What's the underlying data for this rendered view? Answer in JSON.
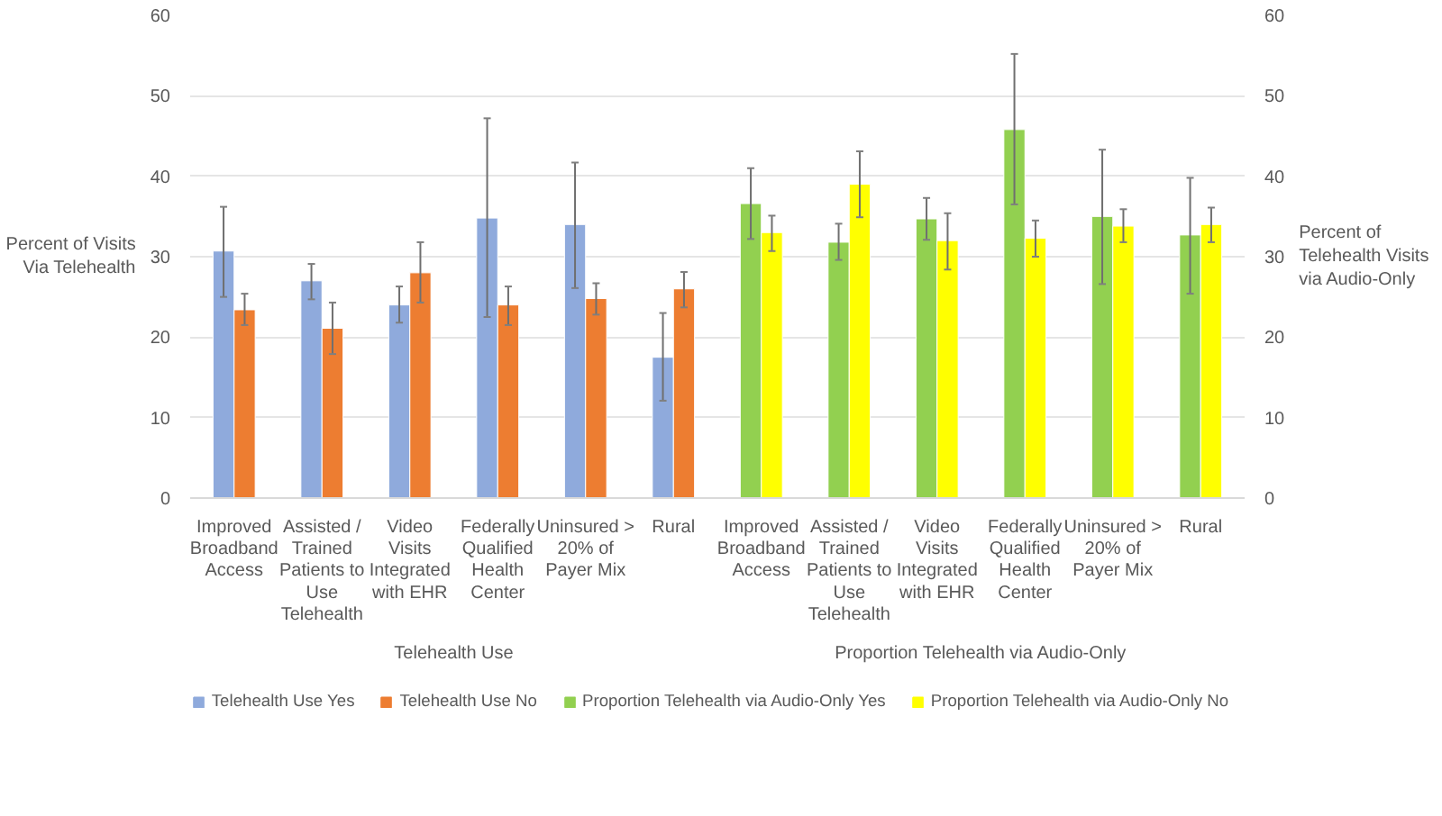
{
  "chart_data": {
    "type": "bar",
    "categories": [
      "Improved Broadband Access",
      "Assisted / Trained Patients to Use Telehealth",
      "Video Visits Integrated with EHR",
      "Federally Qualified Health Center",
      "Uninsured > 20% of Payer Mix",
      "Rural",
      "Improved Broadband Access",
      "Assisted / Trained Patients to Use Telehealth",
      "Video Visits Integrated with EHR",
      "Federally Qualified Health Center",
      "Uninsured > 20% of Payer Mix",
      "Rural"
    ],
    "ylabel": "Percent of Visits Via Telehealth",
    "y2label": "Percent of Telehealth Visits via Audio-Only",
    "annotations": [
      "Telehealth Use",
      "Proportion Telehealth via Audio-Only"
    ],
    "ylim": [
      0,
      60
    ],
    "yticks": [
      0,
      10,
      20,
      30,
      40,
      50,
      60
    ],
    "y2lim": [
      0,
      60
    ],
    "y2ticks": [
      0,
      10,
      20,
      30,
      40,
      50,
      60
    ],
    "grid": "y",
    "legend": "bottom",
    "series": [
      {
        "name": "Telehealth Use Yes",
        "color": "#8faadc",
        "values": [
          30.7,
          27,
          24,
          34.8,
          34,
          17.5,
          null,
          null,
          null,
          null,
          null,
          null
        ],
        "errors": [
          [
            25,
            36.2
          ],
          [
            24.7,
            29.1
          ],
          [
            21.8,
            26.3
          ],
          [
            22.5,
            47.2
          ],
          [
            26.1,
            41.7
          ],
          [
            12.1,
            23
          ],
          null,
          null,
          null,
          null,
          null,
          null
        ]
      },
      {
        "name": "Telehealth Use No",
        "color": "#ed7d31",
        "values": [
          23.4,
          21.1,
          28,
          24,
          24.8,
          26,
          null,
          null,
          null,
          null,
          null,
          null
        ],
        "errors": [
          [
            21.5,
            25.4
          ],
          [
            17.9,
            24.3
          ],
          [
            24.3,
            31.8
          ],
          [
            21.5,
            26.3
          ],
          [
            22.8,
            26.7
          ],
          [
            23.7,
            28.1
          ],
          null,
          null,
          null,
          null,
          null,
          null
        ]
      },
      {
        "name": "Proportion Telehealth via Audio-Only Yes",
        "color": "#92d050",
        "axis": "y2",
        "values": [
          null,
          null,
          null,
          null,
          null,
          null,
          36.6,
          31.8,
          34.7,
          45.8,
          35,
          32.7
        ],
        "errors": [
          null,
          null,
          null,
          null,
          null,
          null,
          [
            32.2,
            41
          ],
          [
            29.6,
            34.1
          ],
          [
            32.1,
            37.3
          ],
          [
            36.5,
            55.2
          ],
          [
            26.6,
            43.3
          ],
          [
            25.4,
            39.8
          ]
        ]
      },
      {
        "name": "Proportion Telehealth via Audio-Only No",
        "color": "#ffff00",
        "axis": "y2",
        "values": [
          null,
          null,
          null,
          null,
          null,
          null,
          33,
          39,
          32,
          32.3,
          33.8,
          34
        ],
        "errors": [
          null,
          null,
          null,
          null,
          null,
          null,
          [
            30.7,
            35.1
          ],
          [
            34.9,
            43.1
          ],
          [
            28.4,
            35.4
          ],
          [
            30,
            34.5
          ],
          [
            31.8,
            35.9
          ],
          [
            31.8,
            36.1
          ]
        ]
      }
    ]
  }
}
